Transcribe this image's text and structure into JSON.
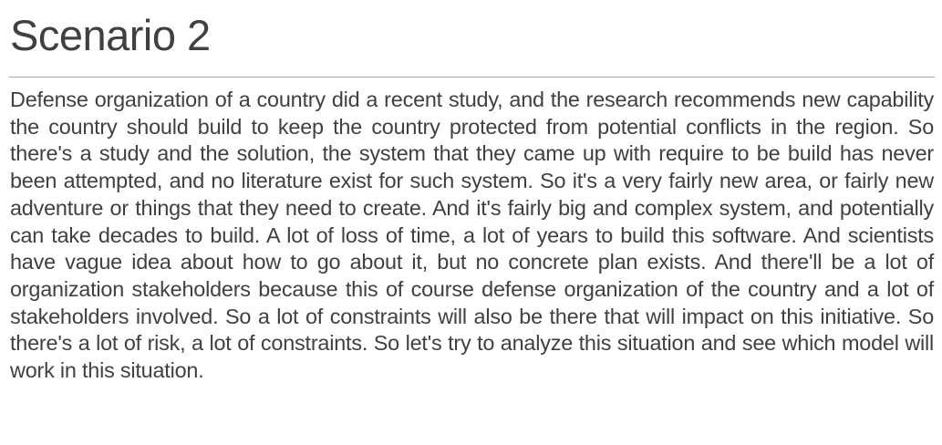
{
  "slide": {
    "title": "Scenario 2",
    "body": "Defense organization of a country did a recent study, and the research recommends new capability the country should build to keep the country protected from potential conflicts in the region. So there's a study and the solution, the system that they came up with require to be build has never been attempted, and no literature exist for such system. So it's a very fairly new area, or fairly new adventure or things that they need to create. And it's fairly big and complex system, and potentially can take decades to build. A lot of loss of time, a lot of years to build this software. And scientists have vague idea about how to go about it, but no concrete plan exists. And there'll be a lot of organization stakeholders because this of course defense organization of the country and a lot of stakeholders involved. So a lot of constraints will also be there that will impact on this initiative. So there's a lot of risk, a lot of constraints. So let's try to analyze this situation and see which model will work in this situation."
  }
}
